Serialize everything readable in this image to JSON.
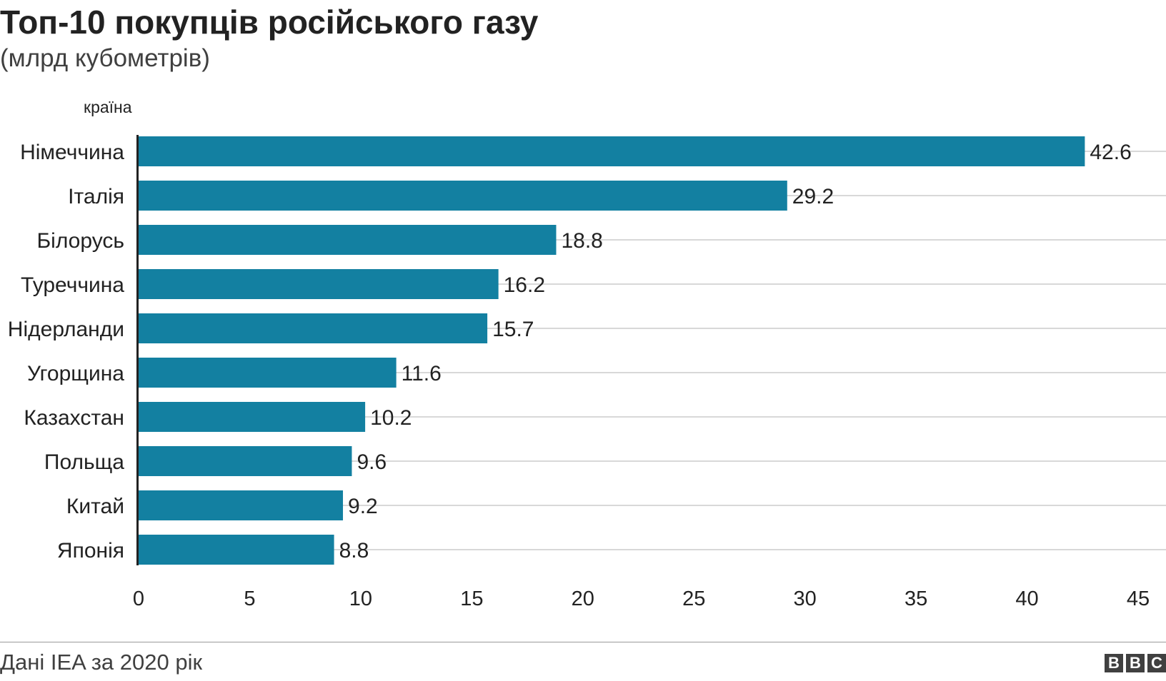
{
  "title": "Топ-10 покупців російського газу",
  "subtitle": "(млрд кубометрів)",
  "source": "Дані IEA за 2020 рік",
  "logo": [
    "B",
    "B",
    "C"
  ],
  "colors": {
    "bar": "#1380a1",
    "grid": "#cccccc",
    "axis": "#222222",
    "text": "#222222"
  },
  "chart_data": {
    "type": "bar",
    "orientation": "horizontal",
    "ylabel": "країна",
    "xlabel": "",
    "categories": [
      "Німеччина",
      "Італія",
      "Білорусь",
      "Туреччина",
      "Нідерланди",
      "Угорщина",
      "Казахстан",
      "Польща",
      "Китай",
      "Японія"
    ],
    "values": [
      42.6,
      29.2,
      18.8,
      16.2,
      15.7,
      11.6,
      10.2,
      9.6,
      9.2,
      8.8
    ],
    "value_labels": [
      "42.6",
      "29.2",
      "18.8",
      "16.2",
      "15.7",
      "11.6",
      "10.2",
      "9.6",
      "9.2",
      "8.8"
    ],
    "xlim": [
      0,
      45
    ],
    "xticks": [
      0,
      5,
      10,
      15,
      20,
      25,
      30,
      35,
      40,
      45
    ],
    "grid": true,
    "legend": "none"
  }
}
